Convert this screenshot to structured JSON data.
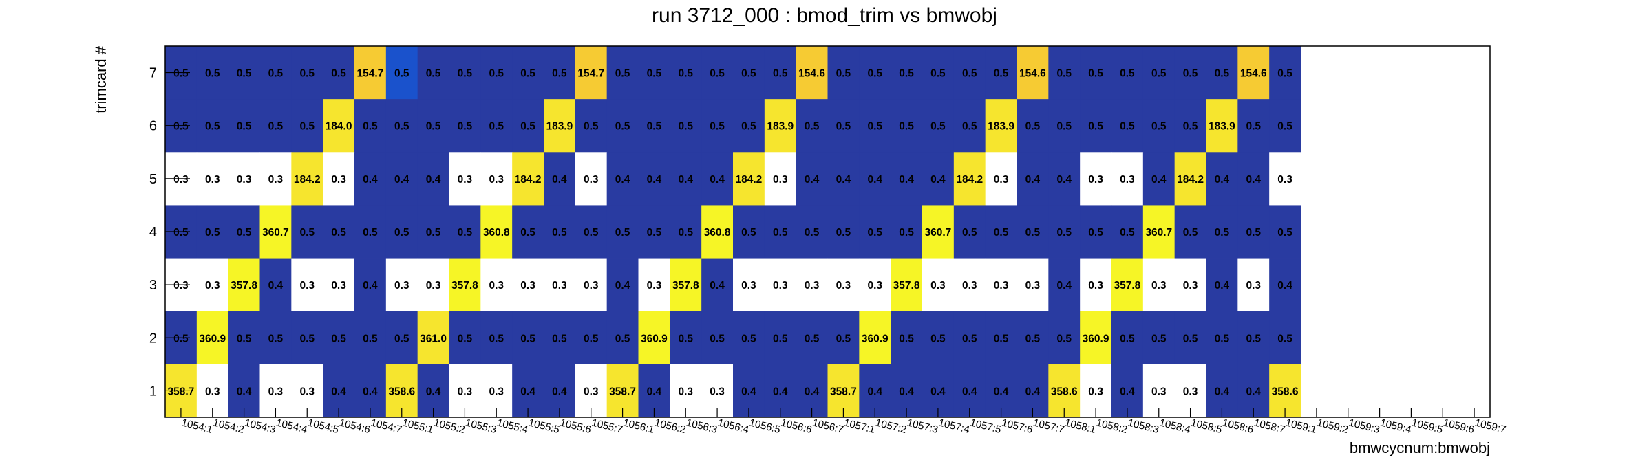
{
  "chart_data": {
    "type": "heatmap",
    "title": "run 3712_000 : bmod_trim vs bmwobj",
    "xlabel": "bmwcycnum:bmwobj",
    "ylabel": "trimcard #",
    "x_categories": [
      "1054:1",
      "1054:2",
      "1054:3",
      "1054:4",
      "1054:5",
      "1054:6",
      "1054:7",
      "1055:1",
      "1055:2",
      "1055:3",
      "1055:4",
      "1055:5",
      "1055:6",
      "1055:7",
      "1056:1",
      "1056:2",
      "1056:3",
      "1056:4",
      "1056:5",
      "1056:6",
      "1056:7",
      "1057:1",
      "1057:2",
      "1057:3",
      "1057:4",
      "1057:5",
      "1057:6",
      "1057:7",
      "1058:1",
      "1058:2",
      "1058:3",
      "1058:4",
      "1058:5",
      "1058:6",
      "1058:7",
      "1059:1",
      "1059:2",
      "1059:3",
      "1059:4",
      "1059:5",
      "1059:6",
      "1059:7"
    ],
    "y_categories": [
      "7",
      "6",
      "5",
      "4",
      "3",
      "2",
      "1"
    ],
    "values": [
      [
        "0.5",
        "0.5",
        "0.5",
        "0.5",
        "0.5",
        "0.5",
        "154.7",
        "0.5",
        "0.5",
        "0.5",
        "0.5",
        "0.5",
        "0.5",
        "154.7",
        "0.5",
        "0.5",
        "0.5",
        "0.5",
        "0.5",
        "0.5",
        "154.6",
        "0.5",
        "0.5",
        "0.5",
        "0.5",
        "0.5",
        "0.5",
        "154.6",
        "0.5",
        "0.5",
        "0.5",
        "0.5",
        "0.5",
        "0.5",
        "154.6",
        "0.5",
        null,
        null,
        null,
        null,
        null,
        null
      ],
      [
        "0.5",
        "0.5",
        "0.5",
        "0.5",
        "0.5",
        "184.0",
        "0.5",
        "0.5",
        "0.5",
        "0.5",
        "0.5",
        "0.5",
        "183.9",
        "0.5",
        "0.5",
        "0.5",
        "0.5",
        "0.5",
        "0.5",
        "183.9",
        "0.5",
        "0.5",
        "0.5",
        "0.5",
        "0.5",
        "0.5",
        "183.9",
        "0.5",
        "0.5",
        "0.5",
        "0.5",
        "0.5",
        "0.5",
        "183.9",
        "0.5",
        "0.5",
        null,
        null,
        null,
        null,
        null,
        null
      ],
      [
        "0.3",
        "0.3",
        "0.3",
        "0.3",
        "184.2",
        "0.3",
        "0.4",
        "0.4",
        "0.4",
        "0.3",
        "0.3",
        "184.2",
        "0.4",
        "0.3",
        "0.4",
        "0.4",
        "0.4",
        "0.4",
        "184.2",
        "0.3",
        "0.4",
        "0.4",
        "0.4",
        "0.4",
        "0.4",
        "184.2",
        "0.3",
        "0.4",
        "0.4",
        "0.3",
        "0.3",
        "0.4",
        "184.2",
        "0.4",
        "0.4",
        "0.3",
        null,
        null,
        null,
        null,
        null,
        null
      ],
      [
        "0.5",
        "0.5",
        "0.5",
        "360.7",
        "0.5",
        "0.5",
        "0.5",
        "0.5",
        "0.5",
        "0.5",
        "360.8",
        "0.5",
        "0.5",
        "0.5",
        "0.5",
        "0.5",
        "0.5",
        "360.8",
        "0.5",
        "0.5",
        "0.5",
        "0.5",
        "0.5",
        "0.5",
        "360.7",
        "0.5",
        "0.5",
        "0.5",
        "0.5",
        "0.5",
        "0.5",
        "360.7",
        "0.5",
        "0.5",
        "0.5",
        "0.5",
        null,
        null,
        null,
        null,
        null,
        null
      ],
      [
        "0.3",
        "0.3",
        "357.8",
        "0.4",
        "0.3",
        "0.3",
        "0.4",
        "0.3",
        "0.3",
        "357.8",
        "0.3",
        "0.3",
        "0.3",
        "0.3",
        "0.4",
        "0.3",
        "357.8",
        "0.4",
        "0.3",
        "0.3",
        "0.3",
        "0.3",
        "0.3",
        "357.8",
        "0.3",
        "0.3",
        "0.3",
        "0.3",
        "0.4",
        "0.3",
        "357.8",
        "0.3",
        "0.3",
        "0.4",
        "0.3",
        "0.4",
        null,
        null,
        null,
        null,
        null,
        null
      ],
      [
        "0.5",
        "360.9",
        "0.5",
        "0.5",
        "0.5",
        "0.5",
        "0.5",
        "0.5",
        "361.0",
        "0.5",
        "0.5",
        "0.5",
        "0.5",
        "0.5",
        "0.5",
        "360.9",
        "0.5",
        "0.5",
        "0.5",
        "0.5",
        "0.5",
        "0.5",
        "360.9",
        "0.5",
        "0.5",
        "0.5",
        "0.5",
        "0.5",
        "0.5",
        "360.9",
        "0.5",
        "0.5",
        "0.5",
        "0.5",
        "0.5",
        "0.5",
        null,
        null,
        null,
        null,
        null,
        null
      ],
      [
        "358.7",
        "0.3",
        "0.4",
        "0.3",
        "0.3",
        "0.4",
        "0.4",
        "358.6",
        "0.4",
        "0.3",
        "0.3",
        "0.4",
        "0.4",
        "0.3",
        "358.7",
        "0.4",
        "0.3",
        "0.3",
        "0.4",
        "0.4",
        "0.4",
        "358.7",
        "0.4",
        "0.4",
        "0.4",
        "0.4",
        "0.4",
        "0.4",
        "358.6",
        "0.3",
        "0.4",
        "0.3",
        "0.3",
        "0.4",
        "0.4",
        "358.6",
        null,
        null,
        null,
        null,
        null,
        null
      ]
    ],
    "colors": {
      "0.3": "#ffffff",
      "0.4": "#293ba1",
      "0.5": "#293ba1",
      "0.5_hi": "#1a52cc",
      "154": "#f6cb33",
      "184": "#f6e52e",
      "357": "#f6f526",
      "360": "#f6f526"
    },
    "highlight_cells": [
      [
        0,
        7
      ]
    ],
    "grid": false,
    "legend": "none"
  }
}
